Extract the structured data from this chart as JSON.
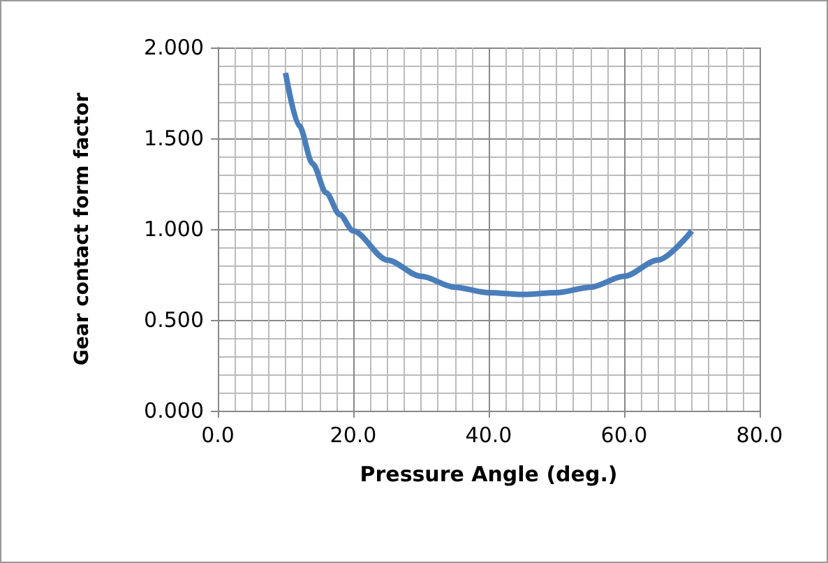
{
  "chart_data": {
    "type": "line",
    "xlabel": "Pressure Angle (deg.)",
    "ylabel": "Gear contact form factor",
    "x": [
      10,
      12,
      14,
      16,
      18,
      20,
      25,
      30,
      35,
      40,
      45,
      50,
      55,
      60,
      65,
      70
    ],
    "series": [
      {
        "color": "#4a7ebb",
        "values": [
          1.86,
          1.57,
          1.36,
          1.2,
          1.08,
          0.99,
          0.83,
          0.74,
          0.68,
          0.65,
          0.64,
          0.65,
          0.68,
          0.74,
          0.83,
          0.99
        ]
      }
    ],
    "xlim": [
      0,
      80
    ],
    "xticks": [
      {
        "value": 0,
        "label": "0.0"
      },
      {
        "value": 20,
        "label": "20.0"
      },
      {
        "value": 40,
        "label": "40.0"
      },
      {
        "value": 60,
        "label": "60.0"
      },
      {
        "value": 80,
        "label": "80.0"
      }
    ],
    "ylim": [
      0,
      2
    ],
    "yticks": [
      {
        "value": 0,
        "label": "0.000"
      },
      {
        "value": 0.5,
        "label": "0.500"
      },
      {
        "value": 1,
        "label": "1.000"
      },
      {
        "value": 1.5,
        "label": "1.500"
      },
      {
        "value": 2,
        "label": "2.000"
      }
    ],
    "grid": true,
    "marker": "none",
    "line_style": "solid"
  }
}
